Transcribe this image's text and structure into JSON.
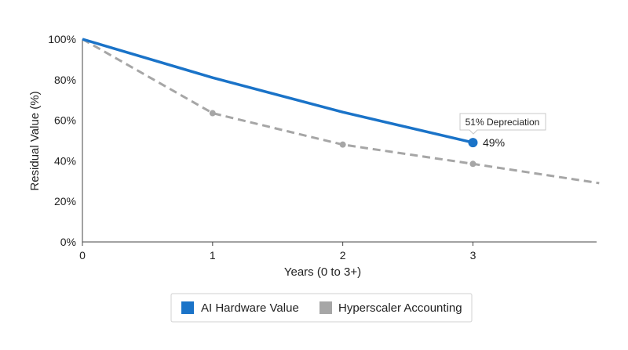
{
  "chart_data": {
    "type": "line",
    "xlabel": "Years (0 to 3+)",
    "ylabel": "Residual Value (%)",
    "xlim": [
      0,
      3.95
    ],
    "ylim": [
      0,
      100
    ],
    "x_ticks": [
      "0",
      "1",
      "2",
      "3"
    ],
    "y_ticks": [
      "0%",
      "20%",
      "40%",
      "60%",
      "80%",
      "100%"
    ],
    "grid": false,
    "legend_position": "bottom",
    "series": [
      {
        "name": "AI Hardware Value",
        "color": "#1a73c8",
        "style": "solid",
        "x": [
          0,
          1,
          2,
          3
        ],
        "values": [
          100,
          81,
          64,
          49
        ]
      },
      {
        "name": "Hyperscaler Accounting",
        "color": "#a6a6a6",
        "style": "dashed",
        "x": [
          0,
          1,
          2,
          3,
          3.97
        ],
        "values": [
          100,
          63.5,
          48,
          38.5,
          29
        ]
      }
    ],
    "annotations": [
      {
        "text": "51% Depreciation",
        "x": 3,
        "y": 49,
        "kind": "callout"
      },
      {
        "text": "49%",
        "x": 3,
        "y": 49,
        "kind": "value-label"
      }
    ]
  }
}
